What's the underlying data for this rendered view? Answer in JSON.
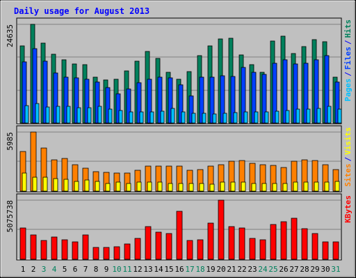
{
  "title": "Daily usage for August 2013",
  "colors": {
    "background": "#c0c0c0",
    "title": "#0000ff",
    "hits": "#00805c",
    "files": "#0040ff",
    "pages": "#00c0ff",
    "sites": "#ff8000",
    "visits": "#ffff00",
    "kbytes": "#ff0000",
    "weekend_day": "#00805c",
    "weekday": "#000000"
  },
  "chart_data": [
    {
      "type": "bar",
      "panel": "traffic",
      "legend": [
        "Pages",
        "/",
        "Files",
        "/",
        "Hits"
      ],
      "max_label": "24635",
      "ylim": [
        0,
        24635
      ],
      "categories": [
        "1",
        "2",
        "3",
        "4",
        "5",
        "6",
        "7",
        "8",
        "9",
        "10",
        "11",
        "12",
        "13",
        "14",
        "15",
        "16",
        "17",
        "18",
        "19",
        "20",
        "21",
        "22",
        "23",
        "24",
        "25",
        "26",
        "27",
        "28",
        "29",
        "30",
        "31"
      ],
      "series": [
        {
          "name": "Hits",
          "values": [
            19200,
            24635,
            20000,
            17200,
            15800,
            14800,
            14600,
            11500,
            10800,
            11000,
            13000,
            15500,
            17800,
            16200,
            12600,
            11000,
            12800,
            16800,
            19200,
            21000,
            21200,
            17000,
            14600,
            12600,
            20500,
            21600,
            17400,
            19000,
            20800,
            20300,
            11400
          ]
        },
        {
          "name": "Files",
          "values": [
            15300,
            18500,
            15500,
            12500,
            11400,
            11200,
            10900,
            10300,
            8800,
            7200,
            8500,
            10000,
            10900,
            11500,
            11300,
            9600,
            6800,
            11400,
            11500,
            11800,
            11700,
            13800,
            12600,
            12200,
            14900,
            15800,
            14700,
            15000,
            15800,
            16800,
            10200
          ]
        },
        {
          "name": "Pages",
          "values": [
            4300,
            4900,
            4000,
            4100,
            4200,
            3900,
            3900,
            4100,
            3500,
            3200,
            2700,
            2700,
            2800,
            3000,
            3700,
            2800,
            2500,
            2500,
            2300,
            2400,
            2600,
            2700,
            2700,
            2800,
            3000,
            3200,
            3400,
            3400,
            3600,
            4100,
            3400
          ]
        }
      ]
    },
    {
      "type": "bar",
      "panel": "visitors",
      "legend": [
        "Sites",
        "/",
        "Visits"
      ],
      "max_label": "5985",
      "ylim": [
        0,
        5985
      ],
      "categories": [
        "1",
        "2",
        "3",
        "4",
        "5",
        "6",
        "7",
        "8",
        "9",
        "10",
        "11",
        "12",
        "13",
        "14",
        "15",
        "16",
        "17",
        "18",
        "19",
        "20",
        "21",
        "22",
        "23",
        "24",
        "25",
        "26",
        "27",
        "28",
        "29",
        "30",
        "31"
      ],
      "series": [
        {
          "name": "Sites",
          "values": [
            4000,
            5985,
            4400,
            3200,
            3300,
            2700,
            2300,
            2000,
            1900,
            1800,
            1800,
            2100,
            2500,
            2500,
            2500,
            2500,
            2100,
            2200,
            2500,
            2700,
            3000,
            3100,
            2800,
            2700,
            2600,
            2400,
            3000,
            3200,
            3100,
            2700,
            2200
          ]
        },
        {
          "name": "Visits",
          "values": [
            1800,
            1400,
            1400,
            1300,
            1200,
            1000,
            1100,
            1000,
            800,
            900,
            800,
            900,
            900,
            900,
            800,
            800,
            800,
            800,
            700,
            900,
            900,
            900,
            800,
            800,
            800,
            800,
            900,
            900,
            900,
            900,
            1000
          ]
        }
      ]
    },
    {
      "type": "bar",
      "panel": "kbytes",
      "legend": [
        "KBytes"
      ],
      "max_label": "5075738",
      "ylim": [
        0,
        5075738
      ],
      "categories": [
        "1",
        "2",
        "3",
        "4",
        "5",
        "6",
        "7",
        "8",
        "9",
        "10",
        "11",
        "12",
        "13",
        "14",
        "15",
        "16",
        "17",
        "18",
        "19",
        "20",
        "21",
        "22",
        "23",
        "24",
        "25",
        "26",
        "27",
        "28",
        "29",
        "30",
        "31"
      ],
      "series": [
        {
          "name": "KBytes",
          "values": [
            2700000,
            2100000,
            1600000,
            1900000,
            1700000,
            1500000,
            2100000,
            1000000,
            1000000,
            1100000,
            1300000,
            1800000,
            2800000,
            2300000,
            2200000,
            4100000,
            1600000,
            1700000,
            3100000,
            5075738,
            2800000,
            2700000,
            1800000,
            1700000,
            3000000,
            3200000,
            3500000,
            2600000,
            2200000,
            1500000,
            1500000
          ]
        }
      ]
    }
  ],
  "day_labels": [
    "1",
    "2",
    "3",
    "4",
    "5",
    "6",
    "7",
    "8",
    "9",
    "10",
    "11",
    "12",
    "13",
    "14",
    "15",
    "16",
    "17",
    "18",
    "19",
    "20",
    "21",
    "22",
    "23",
    "24",
    "25",
    "26",
    "27",
    "28",
    "29",
    "30",
    "31"
  ],
  "weekend_days": [
    "3",
    "4",
    "10",
    "11",
    "17",
    "18",
    "24",
    "25",
    "31"
  ]
}
